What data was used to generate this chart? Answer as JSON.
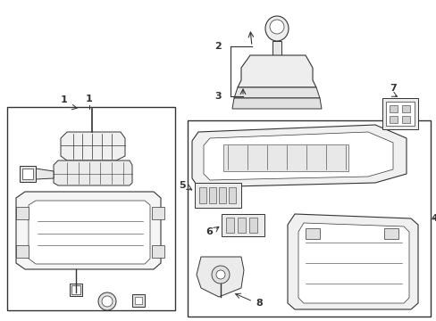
{
  "background_color": "#ffffff",
  "line_color": "#333333",
  "label_color": "#000000",
  "fig_w": 4.89,
  "fig_h": 3.6,
  "dpi": 100
}
